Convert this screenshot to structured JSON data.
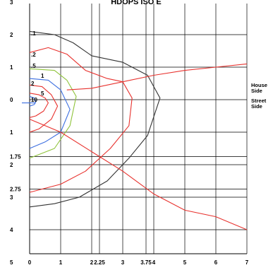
{
  "chart_data": {
    "type": "line",
    "title": "HDOPS ISO E",
    "xlim": [
      0,
      7
    ],
    "ylim": [
      3,
      5
    ],
    "x_tick_labels": [
      {
        "value": 0,
        "label": "0"
      },
      {
        "value": 1,
        "label": "1"
      },
      {
        "value": 2,
        "label": "2"
      },
      {
        "value": 2.25,
        "label": "2.25"
      },
      {
        "value": 3,
        "label": "3"
      },
      {
        "value": 3.75,
        "label": "3.75"
      },
      {
        "value": 4,
        "label": "4"
      },
      {
        "value": 5,
        "label": "5"
      },
      {
        "value": 6,
        "label": "6"
      },
      {
        "value": 7,
        "label": "7"
      }
    ],
    "x_grid": [
      0,
      1,
      2,
      2.25,
      3,
      3.75,
      4,
      5,
      6,
      7
    ],
    "y_tick_labels": [
      {
        "value": 3,
        "label": "3"
      },
      {
        "value": 2,
        "label": "2"
      },
      {
        "value": 1,
        "label": "1"
      },
      {
        "value": 0,
        "label": "0"
      },
      {
        "value": -1,
        "label": "1"
      },
      {
        "value": -1.75,
        "label": "1.75"
      },
      {
        "value": -2,
        "label": "2"
      },
      {
        "value": -2.75,
        "label": "2.75"
      },
      {
        "value": -3,
        "label": "3"
      },
      {
        "value": -4,
        "label": "4"
      },
      {
        "value": -5,
        "label": "5"
      }
    ],
    "y_grid": [
      2,
      1,
      0,
      -1,
      -1.75,
      -2,
      -2.75,
      -3,
      -4
    ],
    "side_labels": {
      "upper": [
        "House",
        "Side"
      ],
      "lower": [
        "Street",
        "Side"
      ]
    },
    "boundary_line": {
      "name": "",
      "color": "#e8322e",
      "points": [
        [
          0,
          -0.6
        ],
        [
          1,
          -1
        ],
        [
          2,
          -1.6
        ],
        [
          3,
          -2.2
        ],
        [
          4,
          -2.9
        ],
        [
          5,
          -3.4
        ],
        [
          6,
          -3.6
        ],
        [
          7,
          -4.0
        ]
      ]
    },
    "top_line": {
      "name": "",
      "color": "#e8322e",
      "points": [
        [
          1.2,
          0.3
        ],
        [
          2,
          0.35
        ],
        [
          3,
          0.55
        ],
        [
          4,
          0.75
        ],
        [
          5,
          0.9
        ],
        [
          6,
          1.0
        ],
        [
          7,
          1.1
        ]
      ]
    },
    "contours": [
      {
        "label": ".1",
        "color": "#333333",
        "points": [
          [
            0,
            2.1
          ],
          [
            0.8,
            2
          ],
          [
            1.4,
            1.75
          ],
          [
            2,
            1.35
          ],
          [
            3,
            1.15
          ],
          [
            3.8,
            0.75
          ],
          [
            4.2,
            0.05
          ],
          [
            3.8,
            -1.1
          ],
          [
            3.2,
            -1.8
          ],
          [
            2.5,
            -2.5
          ],
          [
            1.6,
            -3
          ],
          [
            0.8,
            -3.2
          ],
          [
            0,
            -3.3
          ]
        ]
      },
      {
        "label": ".2",
        "color": "#e8322e",
        "points": [
          [
            0,
            1.45
          ],
          [
            0.6,
            1.6
          ],
          [
            1.2,
            1.4
          ],
          [
            1.8,
            0.9
          ],
          [
            2.5,
            0.65
          ],
          [
            3,
            0.55
          ],
          [
            3.3,
            0.05
          ],
          [
            3.2,
            -0.8
          ],
          [
            2.6,
            -1.5
          ],
          [
            1.8,
            -2.2
          ],
          [
            1,
            -2.6
          ],
          [
            0,
            -2.85
          ]
        ]
      },
      {
        "label": ".5",
        "color": "#8fc33b",
        "points": [
          [
            0,
            0.95
          ],
          [
            0.8,
            0.9
          ],
          [
            1.2,
            0.6
          ],
          [
            1.5,
            0.1
          ],
          [
            1.3,
            -0.8
          ],
          [
            0.8,
            -1.5
          ],
          [
            0,
            -1.8
          ]
        ]
      },
      {
        "label": "1",
        "color": "#3c6ee0",
        "points": [
          [
            0,
            0.65
          ],
          [
            0.6,
            0.6
          ],
          [
            1,
            0.3
          ],
          [
            1.3,
            -0.3
          ],
          [
            1,
            -1
          ],
          [
            0.5,
            -1.3
          ],
          [
            0,
            -1.5
          ]
        ]
      },
      {
        "label": "2",
        "color": "#e8322e",
        "points": [
          [
            0,
            0.45
          ],
          [
            0.4,
            0.4
          ],
          [
            0.7,
            0.15
          ],
          [
            0.9,
            -0.2
          ],
          [
            0.7,
            -0.6
          ],
          [
            0.3,
            -0.9
          ],
          [
            0,
            -1
          ]
        ]
      },
      {
        "label": "5",
        "color": "#e8322e",
        "points": [
          [
            0,
            0.2
          ],
          [
            0.3,
            0.15
          ],
          [
            0.5,
            0.05
          ],
          [
            0.6,
            -0.1
          ],
          [
            0.45,
            -0.35
          ],
          [
            0.2,
            -0.5
          ],
          [
            0,
            -0.55
          ]
        ]
      },
      {
        "label": "10",
        "color": "#3c6ee0",
        "points": [
          [
            0,
            0.1
          ],
          [
            0.15,
            0.05
          ],
          [
            0.2,
            -0.05
          ],
          [
            0.15,
            -0.15
          ],
          [
            0,
            -0.2
          ]
        ]
      }
    ],
    "center_marker": {
      "label": "",
      "color": "#3c6ee0",
      "points": [
        [
          -0.25,
          -0.1
        ],
        [
          0.2,
          -0.1
        ]
      ]
    },
    "grid": true,
    "legend": "none"
  }
}
